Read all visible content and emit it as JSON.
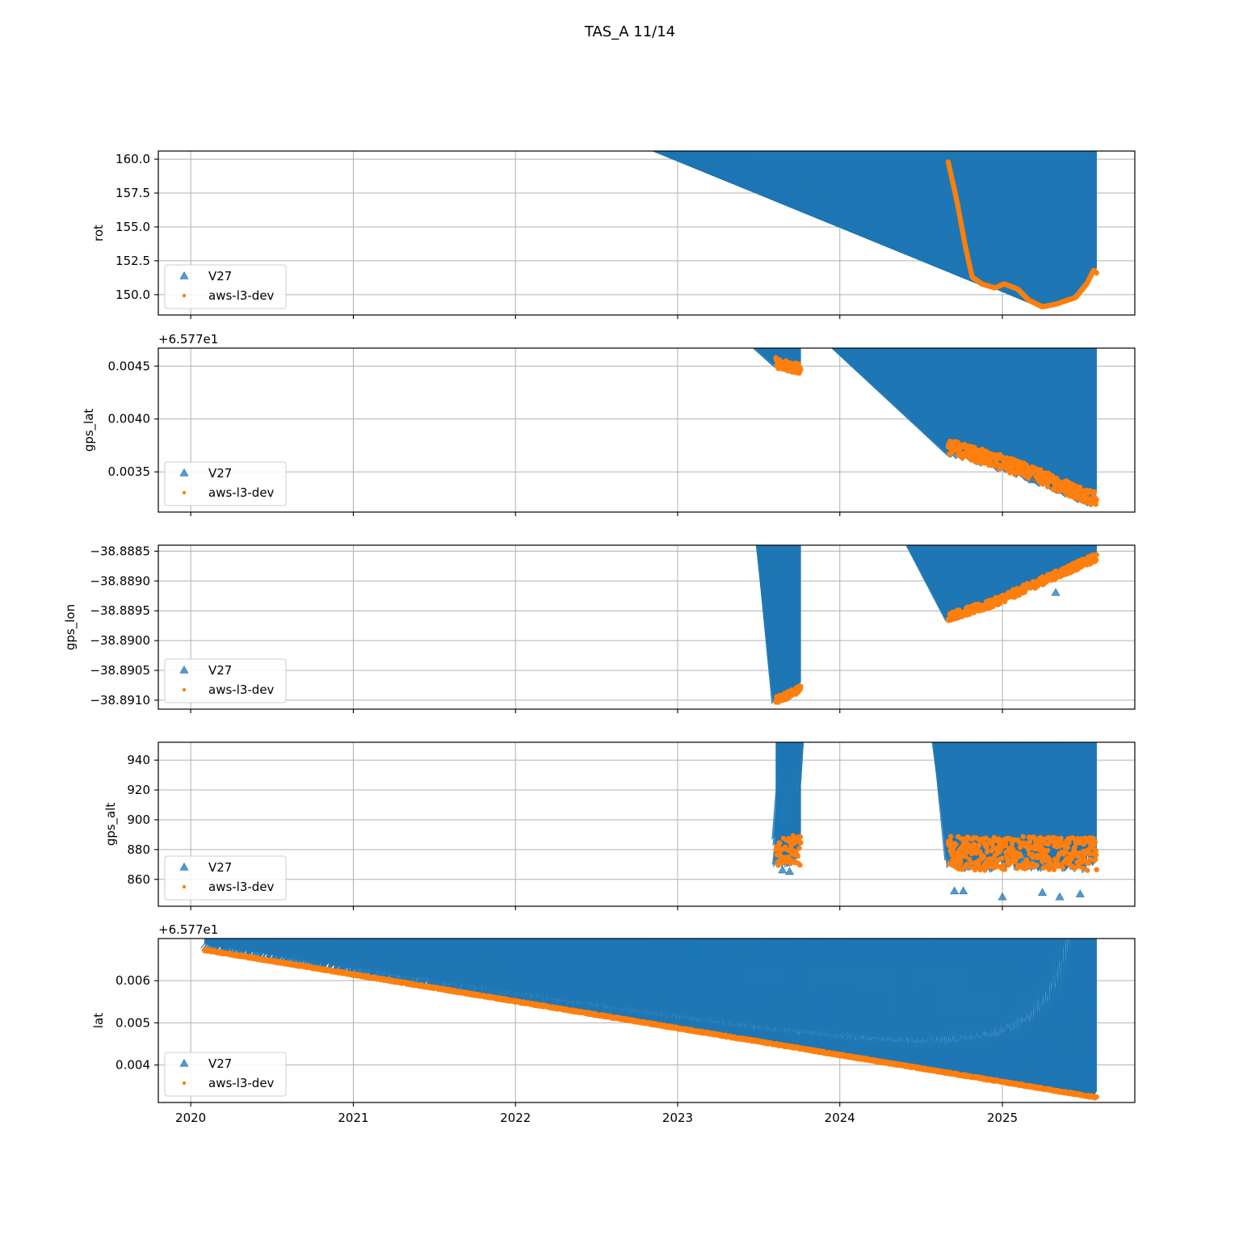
{
  "figure": {
    "title": "TAS_A 11/14"
  },
  "colors": {
    "v27": "#1f77b4",
    "aws": "#ff7f0e"
  },
  "chart_data": [
    {
      "type": "scatter",
      "ylabel": "rot",
      "offset_label": "",
      "xlim": [
        "2019-10-20",
        "2025-10-26"
      ],
      "ylim": [
        148.5,
        160.6
      ],
      "x_ticks": [
        "2020",
        "2021",
        "2022",
        "2023",
        "2024",
        "2025"
      ],
      "y_ticks": [
        "150.0",
        "152.5",
        "155.0",
        "157.5",
        "160.0"
      ],
      "y_tick_values": [
        150.0,
        152.5,
        155.0,
        157.5,
        160.0
      ],
      "grid": true,
      "legend": {
        "placement": "lower-left",
        "entries": [
          "V27",
          "aws-l3-dev"
        ]
      },
      "series": [
        {
          "name": "V27",
          "marker": "triangle",
          "segments": [
            {
              "x": [
                "2024-09-01",
                "2024-09-20",
                "2024-10-10",
                "2024-10-25",
                "2024-11-15",
                "2024-12-15",
                "2025-01-05",
                "2025-02-05",
                "2025-03-01",
                "2025-04-01",
                "2025-05-01",
                "2025-06-15",
                "2025-07-10",
                "2025-07-25",
                "2025-08-01"
              ],
              "y": [
                159.8,
                157.0,
                153.5,
                151.3,
                150.8,
                150.5,
                150.8,
                150.4,
                149.6,
                149.1,
                149.3,
                149.8,
                150.8,
                151.8,
                151.6
              ]
            }
          ]
        },
        {
          "name": "aws-l3-dev",
          "marker": "dot",
          "segments": [
            {
              "x": [
                "2024-09-01",
                "2024-09-20",
                "2024-10-10",
                "2024-10-25",
                "2024-11-15",
                "2024-12-15",
                "2025-01-05",
                "2025-02-05",
                "2025-03-01",
                "2025-04-01",
                "2025-05-01",
                "2025-06-15",
                "2025-07-10",
                "2025-07-25",
                "2025-08-01"
              ],
              "y": [
                159.8,
                157.0,
                153.5,
                151.3,
                150.8,
                150.5,
                150.8,
                150.4,
                149.6,
                149.1,
                149.3,
                149.8,
                150.8,
                151.8,
                151.6
              ]
            }
          ]
        }
      ],
      "outliers": []
    },
    {
      "type": "scatter",
      "ylabel": "gps_lat",
      "offset_label": "+6.577e1",
      "xlim": [
        "2019-10-20",
        "2025-10-26"
      ],
      "ylim": [
        0.00312,
        0.00467
      ],
      "x_ticks": [
        "2020",
        "2021",
        "2022",
        "2023",
        "2024",
        "2025"
      ],
      "y_ticks": [
        "0.0035",
        "0.0040",
        "0.0045"
      ],
      "y_tick_values": [
        0.0035,
        0.004,
        0.0045
      ],
      "grid": true,
      "legend": {
        "placement": "lower-left",
        "entries": [
          "V27",
          "aws-l3-dev"
        ]
      },
      "series": [
        {
          "name": "V27",
          "marker": "triangle",
          "segments": [
            {
              "x": [
                "2023-08-10",
                "2023-09-10",
                "2023-10-05"
              ],
              "y": [
                0.00453,
                0.0045,
                0.00447
              ],
              "spread": 6e-05
            },
            {
              "x": [
                "2024-09-01",
                "2024-12-01",
                "2025-03-01",
                "2025-06-01",
                "2025-08-01"
              ],
              "y": [
                0.00374,
                0.00363,
                0.0035,
                0.00334,
                0.00324
              ],
              "spread": 9e-05
            }
          ]
        },
        {
          "name": "aws-l3-dev",
          "marker": "dot",
          "segments": [
            {
              "x": [
                "2023-08-10",
                "2023-09-10",
                "2023-10-05"
              ],
              "y": [
                0.00453,
                0.0045,
                0.00447
              ],
              "spread": 5e-05
            },
            {
              "x": [
                "2024-09-01",
                "2024-12-01",
                "2025-03-01",
                "2025-06-01",
                "2025-08-01"
              ],
              "y": [
                0.00374,
                0.00363,
                0.0035,
                0.00334,
                0.00324
              ],
              "spread": 7e-05
            }
          ]
        }
      ],
      "outliers": [
        {
          "x": "2024-10-25",
          "y": 0.00384
        },
        {
          "x": "2025-04-20",
          "y": 0.00371
        },
        {
          "x": "2025-04-30",
          "y": 0.00363
        },
        {
          "x": "2025-04-15",
          "y": 0.00354
        },
        {
          "x": "2025-03-10",
          "y": 0.00342
        }
      ]
    },
    {
      "type": "scatter",
      "ylabel": "gps_lon",
      "offset_label": "",
      "xlim": [
        "2019-10-20",
        "2025-10-26"
      ],
      "ylim": [
        -38.89115,
        -38.8884
      ],
      "x_ticks": [
        "2020",
        "2021",
        "2022",
        "2023",
        "2024",
        "2025"
      ],
      "y_ticks": [
        "−38.8910",
        "−38.8905",
        "−38.8900",
        "−38.8895",
        "−38.8890",
        "−38.8885"
      ],
      "y_tick_values": [
        -38.891,
        -38.8905,
        -38.89,
        -38.8895,
        -38.889,
        -38.8885
      ],
      "grid": true,
      "legend": {
        "placement": "lower-left",
        "entries": [
          "V27",
          "aws-l3-dev"
        ]
      },
      "series": [
        {
          "name": "V27",
          "marker": "triangle",
          "segments": [
            {
              "x": [
                "2023-08-10",
                "2023-09-10",
                "2023-10-05"
              ],
              "y": [
                -38.891,
                -38.8909,
                -38.8908
              ],
              "spread": 7e-05
            },
            {
              "x": [
                "2024-09-01",
                "2024-12-01",
                "2025-03-01",
                "2025-06-01",
                "2025-08-01"
              ],
              "y": [
                -38.8896,
                -38.8894,
                -38.8891,
                -38.8888,
                -38.8886
              ],
              "spread": 9e-05
            }
          ]
        },
        {
          "name": "aws-l3-dev",
          "marker": "dot",
          "segments": [
            {
              "x": [
                "2023-08-10",
                "2023-09-10",
                "2023-10-05"
              ],
              "y": [
                -38.891,
                -38.8909,
                -38.8908
              ],
              "spread": 6e-05
            },
            {
              "x": [
                "2024-09-01",
                "2024-12-01",
                "2025-03-01",
                "2025-06-01",
                "2025-08-01"
              ],
              "y": [
                -38.8896,
                -38.8894,
                -38.8891,
                -38.8888,
                -38.8886
              ],
              "spread": 7e-05
            }
          ]
        }
      ],
      "outliers": [
        {
          "x": "2025-05-01",
          "y": -38.8892
        },
        {
          "x": "2025-05-15",
          "y": -38.8886
        }
      ]
    },
    {
      "type": "scatter",
      "ylabel": "gps_alt",
      "offset_label": "",
      "xlim": [
        "2019-10-20",
        "2025-10-26"
      ],
      "ylim": [
        842,
        952
      ],
      "x_ticks": [
        "2020",
        "2021",
        "2022",
        "2023",
        "2024",
        "2025"
      ],
      "y_ticks": [
        "860",
        "880",
        "900",
        "920",
        "940"
      ],
      "y_tick_values": [
        860,
        880,
        900,
        920,
        940
      ],
      "grid": true,
      "legend": {
        "placement": "lower-left",
        "entries": [
          "V27",
          "aws-l3-dev"
        ]
      },
      "series": [
        {
          "name": "V27",
          "marker": "triangle",
          "segments": [
            {
              "x": [
                "2023-08-10",
                "2023-09-10",
                "2023-10-05"
              ],
              "y": [
                879,
                880,
                879
              ],
              "spread": 12
            },
            {
              "x": [
                "2024-09-01",
                "2024-12-01",
                "2025-03-01",
                "2025-06-01",
                "2025-08-01"
              ],
              "y": [
                878,
                877,
                878,
                877,
                877
              ],
              "spread": 13
            }
          ]
        },
        {
          "name": "aws-l3-dev",
          "marker": "dot",
          "segments": [
            {
              "x": [
                "2023-08-10",
                "2023-09-10",
                "2023-10-05"
              ],
              "y": [
                879,
                880,
                879
              ],
              "spread": 10
            },
            {
              "x": [
                "2024-09-01",
                "2024-12-01",
                "2025-03-01",
                "2025-06-01",
                "2025-08-01"
              ],
              "y": [
                878,
                877,
                878,
                877,
                877
              ],
              "spread": 11
            }
          ]
        }
      ],
      "outliers": [
        {
          "x": "2025-05-15",
          "y": 947
        },
        {
          "x": "2025-05-01",
          "y": 938
        },
        {
          "x": "2025-04-20",
          "y": 922
        },
        {
          "x": "2025-04-18",
          "y": 914
        },
        {
          "x": "2025-06-10",
          "y": 908
        },
        {
          "x": "2024-10-25",
          "y": 908
        },
        {
          "x": "2023-09-05",
          "y": 901
        },
        {
          "x": "2023-08-25",
          "y": 866
        },
        {
          "x": "2023-09-10",
          "y": 865
        },
        {
          "x": "2024-09-15",
          "y": 852
        },
        {
          "x": "2024-10-05",
          "y": 852
        },
        {
          "x": "2025-01-01",
          "y": 848
        },
        {
          "x": "2025-04-01",
          "y": 851
        },
        {
          "x": "2025-05-10",
          "y": 848
        },
        {
          "x": "2025-06-25",
          "y": 850
        }
      ]
    },
    {
      "type": "scatter",
      "ylabel": "lat",
      "offset_label": "+6.577e1",
      "xlim": [
        "2019-10-20",
        "2025-10-26"
      ],
      "ylim": [
        0.00311,
        0.007
      ],
      "x_ticks": [
        "2020",
        "2021",
        "2022",
        "2023",
        "2024",
        "2025"
      ],
      "y_ticks": [
        "0.004",
        "0.005",
        "0.006"
      ],
      "y_tick_values": [
        0.004,
        0.005,
        0.006
      ],
      "grid": true,
      "legend": {
        "placement": "lower-left",
        "entries": [
          "V27",
          "aws-l3-dev"
        ]
      },
      "series": [
        {
          "name": "V27",
          "marker": "triangle",
          "segments": [
            {
              "x": [
                "2020-02-01",
                "2025-08-01"
              ],
              "y": [
                0.00673,
                0.00323
              ],
              "spread": 5e-05
            }
          ]
        },
        {
          "name": "aws-l3-dev",
          "marker": "dot",
          "segments": [
            {
              "x": [
                "2020-02-01",
                "2025-08-01"
              ],
              "y": [
                0.00673,
                0.00323
              ],
              "spread": 2e-05
            }
          ]
        }
      ],
      "outliers": []
    }
  ]
}
